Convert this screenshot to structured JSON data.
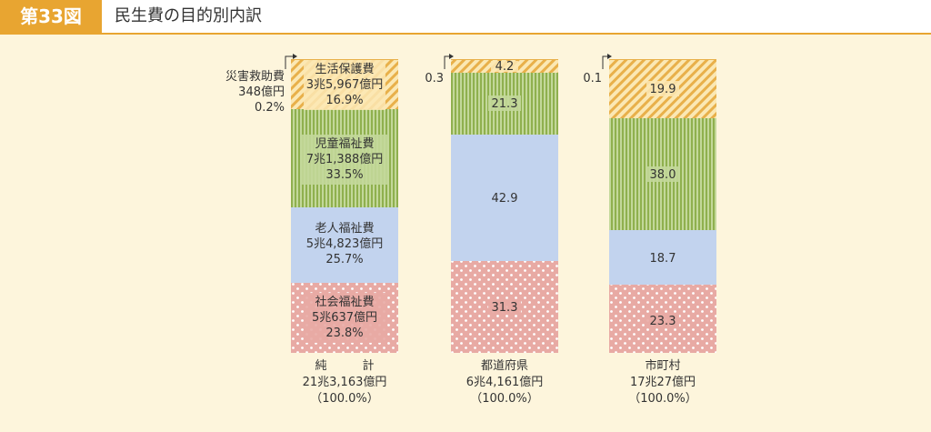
{
  "header": {
    "figure_number": "第33図",
    "title": "民生費の目的別内訳"
  },
  "colors": {
    "welfare_protection": "#e8b04a",
    "child_welfare": "#9ab85a",
    "elderly_welfare": "#c2d3ee",
    "social_welfare": "#e8aaa4",
    "accent": "#e8a531"
  },
  "chart_data": {
    "type": "bar",
    "stacked": true,
    "unit": "%",
    "categories": [
      "純計",
      "都道府県",
      "市町村"
    ],
    "category_labels": [
      {
        "name": "純　　　計",
        "amount": "21兆3,163億円",
        "percent": "（100.0%）"
      },
      {
        "name": "都道府県",
        "amount": "6兆4,161億円",
        "percent": "（100.0%）"
      },
      {
        "name": "市町村",
        "amount": "17兆27億円",
        "percent": "（100.0%）"
      }
    ],
    "series": [
      {
        "key": "social_welfare",
        "name": "社会福祉費",
        "values": [
          23.8,
          31.3,
          23.3
        ]
      },
      {
        "key": "elderly_welfare",
        "name": "老人福祉費",
        "values": [
          25.7,
          42.9,
          18.7
        ]
      },
      {
        "key": "child_welfare",
        "name": "児童福祉費",
        "values": [
          33.5,
          21.3,
          38.0
        ]
      },
      {
        "key": "welfare_protection",
        "name": "生活保護費",
        "values": [
          16.9,
          4.2,
          19.9
        ]
      },
      {
        "key": "disaster_relief",
        "name": "災害救助費",
        "values": [
          0.2,
          0.3,
          0.1
        ]
      }
    ],
    "segment_labels": {
      "total": [
        {
          "name": "社会福祉費",
          "amount": "5兆637億円",
          "percent": "23.8%"
        },
        {
          "name": "老人福祉費",
          "amount": "5兆4,823億円",
          "percent": "25.7%"
        },
        {
          "name": "児童福祉費",
          "amount": "7兆1,388億円",
          "percent": "33.5%"
        },
        {
          "name": "生活保護費",
          "amount": "3兆5,967億円",
          "percent": "16.9%"
        }
      ],
      "prefecture": [
        "31.3",
        "42.9",
        "21.3",
        "4.2"
      ],
      "municipality": [
        "23.3",
        "18.7",
        "38.0",
        "19.9"
      ]
    },
    "callouts": {
      "total": {
        "name": "災害救助費",
        "amount": "348億円",
        "percent": "0.2%"
      },
      "prefecture": "0.3",
      "municipality": "0.1"
    }
  }
}
